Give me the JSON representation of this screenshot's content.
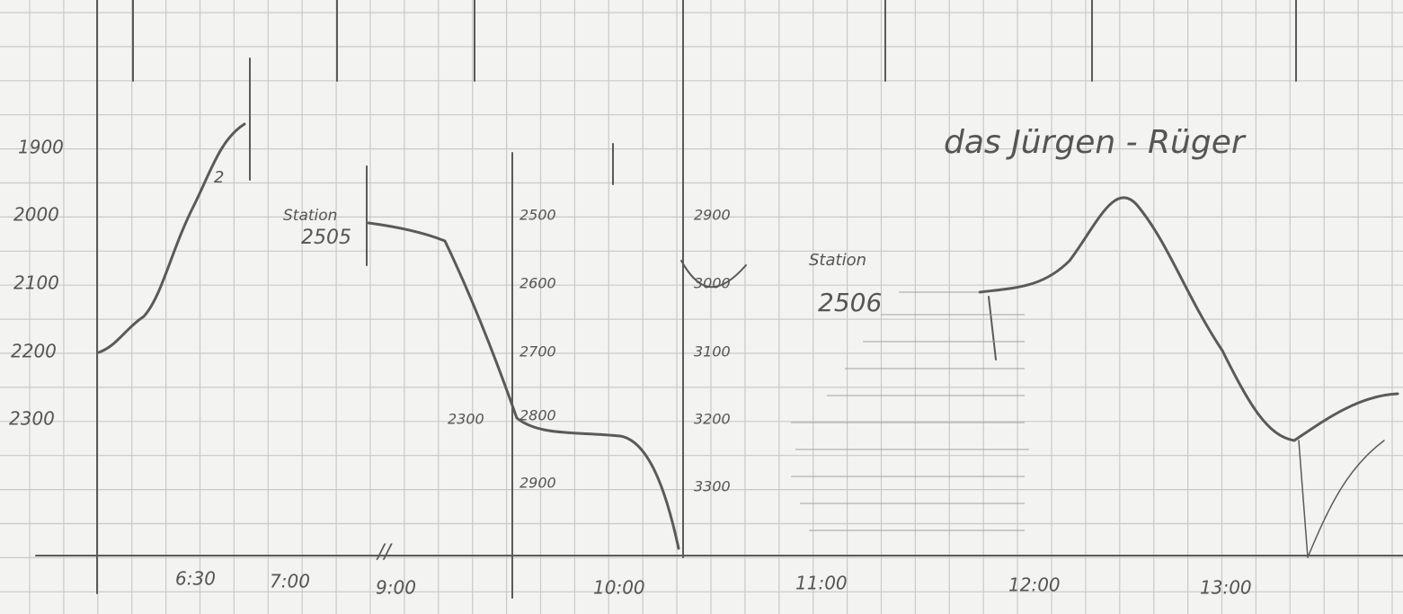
{
  "title": "das Jürgen - Rüger",
  "marker": "2",
  "left_axis": {
    "ticks": [
      "1900",
      "2000",
      "2100",
      "2200",
      "2300"
    ]
  },
  "middle_axis": {
    "ticks": [
      "2500",
      "2600",
      "2700",
      "2800",
      "2900"
    ],
    "side_label": "2300"
  },
  "right_axis": {
    "ticks": [
      "2900",
      "3000",
      "3100",
      "3200",
      "3300"
    ]
  },
  "stations": [
    {
      "label": "Station",
      "number": "2505"
    },
    {
      "label": "Station",
      "number": "2506"
    }
  ],
  "time_labels": [
    "6:30",
    "7:00",
    "9:00",
    "10:00",
    "11:00",
    "12:00",
    "13:00"
  ]
}
